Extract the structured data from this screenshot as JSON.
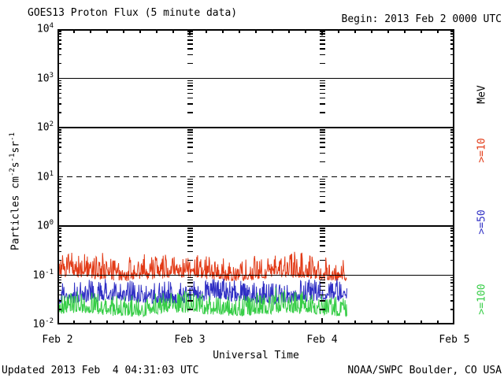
{
  "header": {
    "title": "GOES13 Proton Flux (5 minute data)",
    "begin_label": "Begin: 2013 Feb 2 0000 UTC"
  },
  "footer": {
    "updated": "Updated 2013 Feb  4 04:31:03 UTC",
    "source": "NOAA/SWPC Boulder, CO USA"
  },
  "chart_data": {
    "type": "line",
    "title": "GOES13 Proton Flux (5 minute data)",
    "subtitle": "Begin: 2013 Feb 2 0000 UTC",
    "xlabel": "Universal Time",
    "ylabel": "Particles cm-2 s-1 sr-1",
    "ylabel_parts": [
      {
        "t": "Particles cm"
      },
      {
        "sup": "-2"
      },
      {
        "t": "s"
      },
      {
        "sup": "-1"
      },
      {
        "t": "sr"
      },
      {
        "sup": "-1"
      }
    ],
    "unit_label": "MeV",
    "axis_color": "#000000",
    "background": "#ffffff",
    "y_scale": "log10",
    "y_log_range": [
      -2,
      4
    ],
    "y_tick_exponents": [
      4,
      3,
      2,
      1,
      0,
      -1,
      -2
    ],
    "gridlines": [
      {
        "log": 3,
        "style": "solid"
      },
      {
        "log": 2,
        "style": "solid"
      },
      {
        "log": 1,
        "style": "dashed"
      },
      {
        "log": 0,
        "style": "solid"
      },
      {
        "log": -1,
        "style": "solid"
      }
    ],
    "x_span_days": 3,
    "x_ticks": [
      {
        "label": "Feb 2",
        "day": 0
      },
      {
        "label": "Feb 3",
        "day": 1
      },
      {
        "label": "Feb 4",
        "day": 2
      },
      {
        "label": "Feb 5",
        "day": 3
      }
    ],
    "x_minor_tick_hours": 3,
    "day_marker_lines": [
      1,
      2
    ],
    "sample_minutes": 5,
    "data_start_day": 0,
    "data_end_day": 2.1875,
    "series": [
      {
        "name": "Proton flux >=10 MeV",
        "legend": ">=10",
        "color": "#e23a16",
        "log10_floor": -1.09,
        "log10_range": 0.46,
        "skew": 2,
        "spike_prob": 0.06,
        "spike_extra": 0.2,
        "typical_flux": 0.1,
        "seed": 7
      },
      {
        "name": "Proton flux >=50 MeV",
        "legend": ">=50",
        "color": "#2f2fc4",
        "log10_floor": -1.56,
        "log10_range": 0.44,
        "skew": 2,
        "spike_prob": 0.05,
        "spike_extra": 0.12,
        "typical_flux": 0.05,
        "seed": 11
      },
      {
        "name": "Proton flux >=100 MeV",
        "legend": ">=100",
        "color": "#36cd46",
        "log10_floor": -1.81,
        "log10_range": 0.42,
        "skew": 2,
        "spike_prob": 0.05,
        "spike_extra": 0.1,
        "typical_flux": 0.025,
        "seed": 13
      }
    ],
    "legend_positions_y": [
      191,
      282,
      380
    ],
    "unit_label_y": 120,
    "legend_x": 612
  }
}
